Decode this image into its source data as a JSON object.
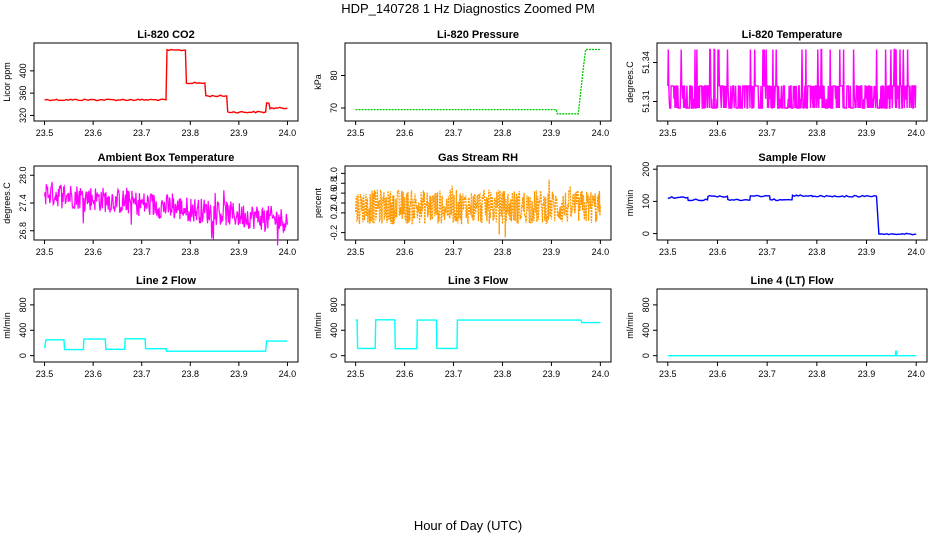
{
  "figure": {
    "title": "HDP_140728  1 Hz Diagnostics Zoomed PM",
    "xlabel": "Hour of Day (UTC)"
  },
  "chart_data": [
    {
      "type": "line",
      "title": "Li-820 CO2",
      "ylabel": "Licor ppm",
      "color": "#ff0000",
      "xlim": [
        23.5,
        24.0
      ],
      "ylim": [
        310,
        450
      ],
      "xticks": [
        "23.5",
        "23.6",
        "23.7",
        "23.8",
        "23.9",
        "24.0"
      ],
      "yticks": [
        "320",
        "360",
        "400"
      ],
      "x": [
        23.5,
        23.75,
        23.752,
        23.79,
        23.792,
        23.83,
        23.832,
        23.875,
        23.877,
        23.955,
        23.957,
        23.962,
        23.964,
        24.0
      ],
      "y": [
        348,
        348,
        437,
        437,
        378,
        378,
        355,
        355,
        326,
        326,
        342,
        342,
        333,
        333
      ]
    },
    {
      "type": "line",
      "title": "Li-820 Pressure",
      "ylabel": "kPa",
      "color": "#00cc00",
      "xlim": [
        23.5,
        24.0
      ],
      "ylim": [
        66,
        90
      ],
      "xticks": [
        "23.5",
        "23.6",
        "23.7",
        "23.8",
        "23.9",
        "24.0"
      ],
      "yticks": [
        "70",
        "80"
      ],
      "x": [
        23.5,
        23.91,
        23.912,
        23.955,
        23.965,
        23.97,
        24.0
      ],
      "y": [
        69.5,
        69.5,
        68.2,
        68.2,
        82,
        88,
        88
      ]
    },
    {
      "type": "line",
      "title": "Li-820 Temperature",
      "ylabel": "degrees.C",
      "color": "#ff00ff",
      "xlim": [
        23.5,
        24.0
      ],
      "ylim": [
        51.295,
        51.355
      ],
      "xticks": [
        "23.5",
        "23.6",
        "23.7",
        "23.8",
        "23.9",
        "24.0"
      ],
      "yticks": [
        "51.31",
        "51.34"
      ],
      "x": [
        23.5,
        24.0
      ],
      "y": [
        51.312,
        51.312
      ]
    },
    {
      "type": "line",
      "title": "Ambient Box Temperature",
      "ylabel": "degrees.C",
      "color": "#ff00ff",
      "xlim": [
        23.5,
        24.0
      ],
      "ylim": [
        26.6,
        28.2
      ],
      "xticks": [
        "23.5",
        "23.6",
        "23.7",
        "23.8",
        "23.9",
        "24.0"
      ],
      "yticks": [
        "26.8",
        "27.4",
        "28.0"
      ],
      "x": [
        23.5,
        23.6,
        23.7,
        23.8,
        23.9,
        24.0
      ],
      "y": [
        27.6,
        27.5,
        27.35,
        27.25,
        27.1,
        27.0
      ]
    },
    {
      "type": "line",
      "title": "Gas Stream RH",
      "ylabel": "percent",
      "color": "#ff9900",
      "xlim": [
        23.5,
        24.0
      ],
      "ylim": [
        -0.35,
        1.15
      ],
      "xticks": [
        "23.5",
        "23.6",
        "23.7",
        "23.8",
        "23.9",
        "24.0"
      ],
      "yticks": [
        "-0.2",
        "0.2",
        "0.4",
        "0.6",
        "0.8",
        "1.0"
      ],
      "x": [
        23.5,
        23.75,
        24.0
      ],
      "y": [
        0.32,
        0.33,
        0.35
      ]
    },
    {
      "type": "line",
      "title": "Sample Flow",
      "ylabel": "ml/min",
      "color": "#0000ff",
      "xlim": [
        23.5,
        24.0
      ],
      "ylim": [
        -20,
        210
      ],
      "xticks": [
        "23.5",
        "23.6",
        "23.7",
        "23.8",
        "23.9",
        "24.0"
      ],
      "yticks": [
        "0",
        "100",
        "200"
      ],
      "x": [
        23.5,
        23.54,
        23.541,
        23.58,
        23.581,
        23.62,
        23.621,
        23.665,
        23.666,
        23.705,
        23.706,
        23.75,
        23.751,
        23.79,
        23.791,
        23.92,
        23.925,
        24.0
      ],
      "y": [
        112,
        112,
        105,
        105,
        116,
        116,
        104,
        104,
        117,
        117,
        105,
        105,
        118,
        118,
        116,
        116,
        -2,
        -2
      ]
    },
    {
      "type": "line",
      "title": "Line 2 Flow",
      "ylabel": "ml/min",
      "color": "#00ffff",
      "xlim": [
        23.5,
        24.0
      ],
      "ylim": [
        -100,
        1050
      ],
      "xticks": [
        "23.5",
        "23.6",
        "23.7",
        "23.8",
        "23.9",
        "24.0"
      ],
      "yticks": [
        "0",
        "400",
        "800"
      ],
      "x": [
        23.5,
        23.503,
        23.54,
        23.541,
        23.58,
        23.581,
        23.625,
        23.626,
        23.665,
        23.666,
        23.707,
        23.708,
        23.75,
        23.751,
        23.955,
        23.957,
        24.0
      ],
      "y": [
        120,
        250,
        250,
        95,
        95,
        260,
        260,
        100,
        100,
        265,
        265,
        110,
        110,
        70,
        70,
        230,
        230
      ]
    },
    {
      "type": "line",
      "title": "Line 3 Flow",
      "ylabel": "ml/min",
      "color": "#00ffff",
      "xlim": [
        23.5,
        24.0
      ],
      "ylim": [
        -100,
        1050
      ],
      "xticks": [
        "23.5",
        "23.6",
        "23.7",
        "23.8",
        "23.9",
        "24.0"
      ],
      "yticks": [
        "0",
        "400",
        "800"
      ],
      "x": [
        23.5,
        23.503,
        23.504,
        23.54,
        23.541,
        23.58,
        23.581,
        23.625,
        23.626,
        23.665,
        23.666,
        23.707,
        23.708,
        23.96,
        23.962,
        24.0
      ],
      "y": [
        560,
        560,
        115,
        115,
        565,
        565,
        110,
        110,
        560,
        560,
        115,
        115,
        560,
        560,
        520,
        520
      ]
    },
    {
      "type": "line",
      "title": "Line 4 (LT) Flow",
      "ylabel": "ml/min",
      "color": "#00ffff",
      "xlim": [
        23.5,
        24.0
      ],
      "ylim": [
        -100,
        1050
      ],
      "xticks": [
        "23.5",
        "23.6",
        "23.7",
        "23.8",
        "23.9",
        "24.0"
      ],
      "yticks": [
        "0",
        "400",
        "800"
      ],
      "x": [
        23.5,
        23.958,
        23.959,
        23.96,
        23.961,
        24.0
      ],
      "y": [
        0,
        0,
        70,
        70,
        0,
        0
      ]
    }
  ]
}
